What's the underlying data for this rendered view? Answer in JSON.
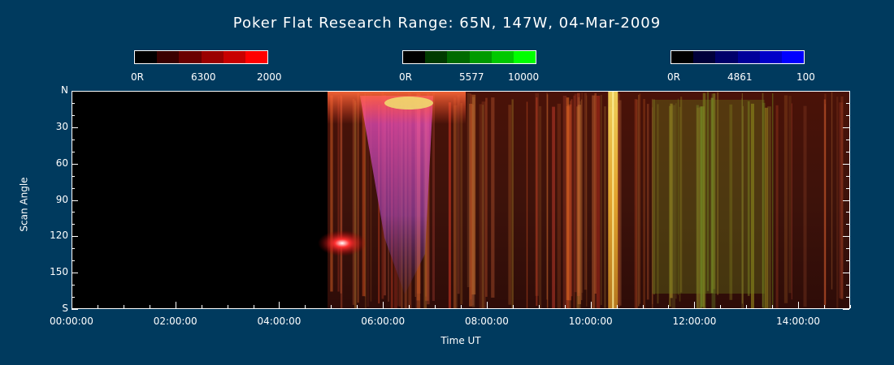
{
  "chart_data": {
    "type": "heatmap",
    "title": "Poker Flat Research Range: 65N, 147W, 04-Mar-2009",
    "xlabel": "Time UT",
    "ylabel": "Scan Angle",
    "xlim": [
      "00:00:00",
      "15:00:00"
    ],
    "ylim": [
      0,
      180
    ],
    "x_ticks": [
      "00:00:00",
      "02:00:00",
      "04:00:00",
      "06:00:00",
      "08:00:00",
      "10:00:00",
      "12:00:00",
      "14:00:00"
    ],
    "y_ticks": [
      "N",
      "30",
      "60",
      "90",
      "120",
      "150",
      "S"
    ],
    "data_start": "04:55:00",
    "colorbars": [
      {
        "wavelength": "6300",
        "min_label": "0R",
        "max_label": "2000",
        "colors": [
          "#000000",
          "#3a0000",
          "#6a0000",
          "#9a0000",
          "#c80000",
          "#ff0000"
        ]
      },
      {
        "wavelength": "5577",
        "min_label": "0R",
        "max_label": "10000",
        "colors": [
          "#000000",
          "#003a00",
          "#006a00",
          "#009a00",
          "#00c800",
          "#00ff00"
        ]
      },
      {
        "wavelength": "4861",
        "min_label": "0R",
        "max_label": "100",
        "colors": [
          "#000000",
          "#00003a",
          "#00006a",
          "#00009a",
          "#0000c8",
          "#0000ff"
        ]
      }
    ]
  }
}
